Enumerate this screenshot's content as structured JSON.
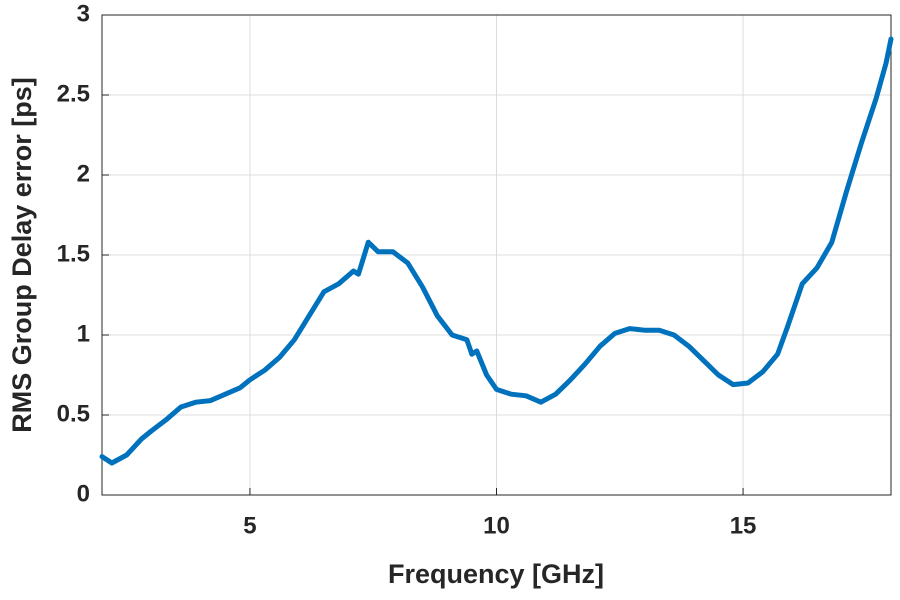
{
  "chart_data": {
    "type": "line",
    "xlabel": "Frequency [GHz]",
    "ylabel": "RMS Group Delay error [ps]",
    "x": [
      2.0,
      2.2,
      2.5,
      2.8,
      3.0,
      3.3,
      3.6,
      3.9,
      4.2,
      4.5,
      4.8,
      5.0,
      5.3,
      5.6,
      5.9,
      6.2,
      6.5,
      6.8,
      7.1,
      7.2,
      7.4,
      7.6,
      7.9,
      8.2,
      8.5,
      8.8,
      9.1,
      9.4,
      9.5,
      9.6,
      9.8,
      10.0,
      10.3,
      10.6,
      10.9,
      11.2,
      11.5,
      11.8,
      12.1,
      12.4,
      12.7,
      13.0,
      13.3,
      13.6,
      13.9,
      14.2,
      14.5,
      14.8,
      15.1,
      15.4,
      15.7,
      15.9,
      16.2,
      16.5,
      16.8,
      17.1,
      17.4,
      17.7,
      17.9,
      18.0
    ],
    "series": [
      {
        "name": "RMS Group Delay error",
        "color": "#0072bd",
        "values": [
          0.24,
          0.2,
          0.25,
          0.35,
          0.4,
          0.47,
          0.55,
          0.58,
          0.59,
          0.63,
          0.67,
          0.72,
          0.78,
          0.86,
          0.97,
          1.12,
          1.27,
          1.32,
          1.4,
          1.38,
          1.58,
          1.52,
          1.52,
          1.45,
          1.3,
          1.12,
          1.0,
          0.97,
          0.88,
          0.9,
          0.75,
          0.66,
          0.63,
          0.62,
          0.58,
          0.63,
          0.72,
          0.82,
          0.93,
          1.01,
          1.04,
          1.03,
          1.03,
          1.0,
          0.93,
          0.84,
          0.75,
          0.69,
          0.7,
          0.77,
          0.88,
          1.05,
          1.32,
          1.42,
          1.58,
          1.9,
          2.2,
          2.48,
          2.7,
          2.85
        ]
      }
    ],
    "xlim": [
      2,
      18
    ],
    "xticks": [
      5,
      10,
      15
    ],
    "ylim": [
      0,
      3
    ],
    "yticks": [
      0,
      0.5,
      1,
      1.5,
      2,
      2.5,
      3
    ],
    "grid": true
  }
}
